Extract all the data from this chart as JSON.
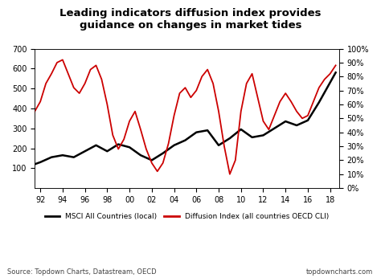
{
  "title": "Leading indicators diffusion index provides\nguidance on changes in market tides",
  "source_text": "Source: Topdown Charts, Datastream, OECD",
  "brand_text": "topdowncharts.com",
  "legend_msci": "MSCI All Countries (local)",
  "legend_diffusion": "Diffusion Index (all countries OECD CLI)",
  "xlim_start": 1991.5,
  "xlim_end": 2018.8,
  "ylim_left": [
    0,
    700
  ],
  "ylim_right": [
    0,
    1.0
  ],
  "yticks_left": [
    100,
    200,
    300,
    400,
    500,
    600,
    700
  ],
  "yticks_right": [
    0.0,
    0.1,
    0.2,
    0.3,
    0.4,
    0.5,
    0.6,
    0.7,
    0.8,
    0.9,
    1.0
  ],
  "xtick_labels": [
    "92",
    "94",
    "96",
    "98",
    "00",
    "02",
    "04",
    "06",
    "08",
    "10",
    "12",
    "14",
    "16",
    "18"
  ],
  "xtick_positions": [
    1992,
    1994,
    1996,
    1998,
    2000,
    2002,
    2004,
    2006,
    2008,
    2010,
    2012,
    2014,
    2016,
    2018
  ],
  "msci_color": "#000000",
  "diffusion_color": "#cc0000",
  "background_color": "#ffffff",
  "msci_x": [
    1991,
    1992,
    1993,
    1994,
    1995,
    1996,
    1997,
    1998,
    1999,
    2000,
    2001,
    2002,
    2003,
    2004,
    2005,
    2006,
    2007,
    2008,
    2009,
    2010,
    2011,
    2012,
    2013,
    2014,
    2015,
    2016,
    2017,
    2018.5
  ],
  "msci_y": [
    110,
    130,
    155,
    165,
    155,
    185,
    215,
    185,
    220,
    205,
    165,
    140,
    175,
    215,
    240,
    280,
    290,
    215,
    250,
    295,
    255,
    265,
    300,
    335,
    315,
    340,
    430,
    580
  ],
  "diffusion_x": [
    1991,
    1991.5,
    1992,
    1992.5,
    1993,
    1993.5,
    1994,
    1994.5,
    1995,
    1995.5,
    1996,
    1996.5,
    1997,
    1997.5,
    1998,
    1998.5,
    1999,
    1999.5,
    2000,
    2000.5,
    2001,
    2001.5,
    2002,
    2002.5,
    2003,
    2003.5,
    2004,
    2004.5,
    2005,
    2005.5,
    2006,
    2006.5,
    2007,
    2007.5,
    2008,
    2008.5,
    2009,
    2009.5,
    2010,
    2010.5,
    2011,
    2011.5,
    2012,
    2012.5,
    2013,
    2013.5,
    2014,
    2014.5,
    2015,
    2015.5,
    2016,
    2016.5,
    2017,
    2017.5,
    2018,
    2018.5
  ],
  "diffusion_y": [
    0.45,
    0.55,
    0.62,
    0.75,
    0.82,
    0.9,
    0.92,
    0.82,
    0.72,
    0.68,
    0.75,
    0.85,
    0.88,
    0.78,
    0.6,
    0.38,
    0.28,
    0.35,
    0.48,
    0.55,
    0.42,
    0.28,
    0.18,
    0.12,
    0.18,
    0.32,
    0.52,
    0.68,
    0.72,
    0.65,
    0.7,
    0.8,
    0.85,
    0.75,
    0.55,
    0.3,
    0.1,
    0.2,
    0.55,
    0.75,
    0.82,
    0.65,
    0.48,
    0.42,
    0.52,
    0.62,
    0.68,
    0.62,
    0.55,
    0.5,
    0.52,
    0.62,
    0.72,
    0.78,
    0.82,
    0.88
  ]
}
